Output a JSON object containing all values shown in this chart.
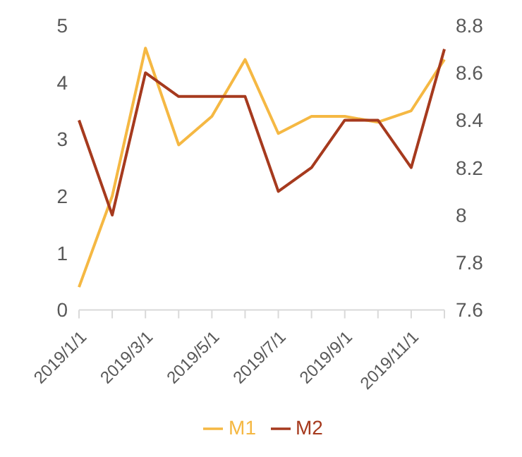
{
  "chart_data": {
    "type": "line",
    "categories": [
      "2019/1/1",
      null,
      "2019/3/1",
      null,
      "2019/5/1",
      null,
      "2019/7/1",
      null,
      "2019/9/1",
      null,
      "2019/11/1",
      null
    ],
    "series": [
      {
        "name": "M1",
        "color": "#f5b843",
        "values": [
          0.4,
          2.0,
          4.6,
          2.9,
          3.4,
          4.4,
          3.1,
          3.4,
          3.4,
          3.3,
          3.5,
          4.4
        ]
      },
      {
        "name": "M2",
        "color": "#a63a1e",
        "axis": "y2",
        "values": [
          8.4,
          8.0,
          8.6,
          8.5,
          8.5,
          8.5,
          8.1,
          8.2,
          8.4,
          8.4,
          8.2,
          8.7
        ]
      }
    ],
    "ylim": [
      0,
      5
    ],
    "yticks": [
      0,
      1,
      2,
      3,
      4,
      5
    ],
    "y2lim": [
      7.6,
      8.8
    ],
    "y2ticks": [
      7.6,
      7.8,
      8,
      8.2,
      8.4,
      8.6,
      8.8
    ],
    "grid": false,
    "legend": "bottom",
    "marker": "none",
    "line_style": "solid"
  }
}
